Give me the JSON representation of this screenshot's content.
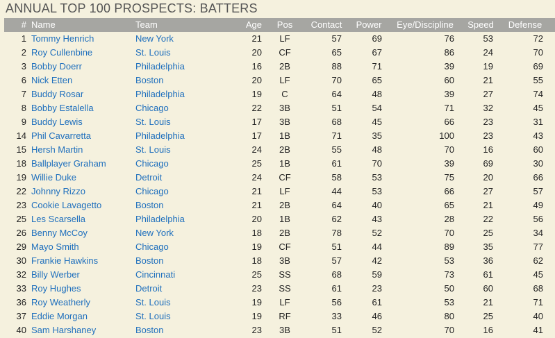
{
  "title": "ANNUAL TOP 100 PROSPECTS: BATTERS",
  "columns": {
    "rank": "#",
    "name": "Name",
    "team": "Team",
    "age": "Age",
    "pos": "Pos",
    "contact": "Contact",
    "power": "Power",
    "eye": "Eye/Discipline",
    "speed": "Speed",
    "defense": "Defense"
  },
  "rows": [
    {
      "rank": "1",
      "name": "Tommy Henrich",
      "team": "New York",
      "age": "21",
      "pos": "LF",
      "contact": "57",
      "power": "69",
      "eye": "76",
      "speed": "53",
      "defense": "72"
    },
    {
      "rank": "2",
      "name": "Roy Cullenbine",
      "team": "St. Louis",
      "age": "20",
      "pos": "CF",
      "contact": "65",
      "power": "67",
      "eye": "86",
      "speed": "24",
      "defense": "70"
    },
    {
      "rank": "3",
      "name": "Bobby Doerr",
      "team": "Philadelphia",
      "age": "16",
      "pos": "2B",
      "contact": "88",
      "power": "71",
      "eye": "39",
      "speed": "19",
      "defense": "69"
    },
    {
      "rank": "6",
      "name": "Nick Etten",
      "team": "Boston",
      "age": "20",
      "pos": "LF",
      "contact": "70",
      "power": "65",
      "eye": "60",
      "speed": "21",
      "defense": "55"
    },
    {
      "rank": "7",
      "name": "Buddy Rosar",
      "team": "Philadelphia",
      "age": "19",
      "pos": "C",
      "contact": "64",
      "power": "48",
      "eye": "39",
      "speed": "27",
      "defense": "74"
    },
    {
      "rank": "8",
      "name": "Bobby Estalella",
      "team": "Chicago",
      "age": "22",
      "pos": "3B",
      "contact": "51",
      "power": "54",
      "eye": "71",
      "speed": "32",
      "defense": "45"
    },
    {
      "rank": "9",
      "name": "Buddy Lewis",
      "team": "St. Louis",
      "age": "17",
      "pos": "3B",
      "contact": "68",
      "power": "45",
      "eye": "66",
      "speed": "23",
      "defense": "31"
    },
    {
      "rank": "14",
      "name": "Phil Cavarretta",
      "team": "Philadelphia",
      "age": "17",
      "pos": "1B",
      "contact": "71",
      "power": "35",
      "eye": "100",
      "speed": "23",
      "defense": "43"
    },
    {
      "rank": "15",
      "name": "Hersh Martin",
      "team": "St. Louis",
      "age": "24",
      "pos": "2B",
      "contact": "55",
      "power": "48",
      "eye": "70",
      "speed": "16",
      "defense": "60"
    },
    {
      "rank": "18",
      "name": "Ballplayer Graham",
      "team": "Chicago",
      "age": "25",
      "pos": "1B",
      "contact": "61",
      "power": "70",
      "eye": "39",
      "speed": "69",
      "defense": "30"
    },
    {
      "rank": "19",
      "name": "Willie Duke",
      "team": "Detroit",
      "age": "24",
      "pos": "CF",
      "contact": "58",
      "power": "53",
      "eye": "75",
      "speed": "20",
      "defense": "66"
    },
    {
      "rank": "22",
      "name": "Johnny Rizzo",
      "team": "Chicago",
      "age": "21",
      "pos": "LF",
      "contact": "44",
      "power": "53",
      "eye": "66",
      "speed": "27",
      "defense": "57"
    },
    {
      "rank": "23",
      "name": "Cookie Lavagetto",
      "team": "Boston",
      "age": "21",
      "pos": "2B",
      "contact": "64",
      "power": "40",
      "eye": "65",
      "speed": "21",
      "defense": "49"
    },
    {
      "rank": "25",
      "name": "Les Scarsella",
      "team": "Philadelphia",
      "age": "20",
      "pos": "1B",
      "contact": "62",
      "power": "43",
      "eye": "28",
      "speed": "22",
      "defense": "56"
    },
    {
      "rank": "26",
      "name": "Benny McCoy",
      "team": "New York",
      "age": "18",
      "pos": "2B",
      "contact": "78",
      "power": "52",
      "eye": "70",
      "speed": "25",
      "defense": "34"
    },
    {
      "rank": "29",
      "name": "Mayo Smith",
      "team": "Chicago",
      "age": "19",
      "pos": "CF",
      "contact": "51",
      "power": "44",
      "eye": "89",
      "speed": "35",
      "defense": "77"
    },
    {
      "rank": "30",
      "name": "Frankie Hawkins",
      "team": "Boston",
      "age": "18",
      "pos": "3B",
      "contact": "57",
      "power": "42",
      "eye": "53",
      "speed": "36",
      "defense": "62"
    },
    {
      "rank": "32",
      "name": "Billy Werber",
      "team": "Cincinnati",
      "age": "25",
      "pos": "SS",
      "contact": "68",
      "power": "59",
      "eye": "73",
      "speed": "61",
      "defense": "45"
    },
    {
      "rank": "33",
      "name": "Roy Hughes",
      "team": "Detroit",
      "age": "23",
      "pos": "SS",
      "contact": "61",
      "power": "23",
      "eye": "50",
      "speed": "60",
      "defense": "68"
    },
    {
      "rank": "36",
      "name": "Roy Weatherly",
      "team": "St. Louis",
      "age": "19",
      "pos": "LF",
      "contact": "56",
      "power": "61",
      "eye": "53",
      "speed": "21",
      "defense": "71"
    },
    {
      "rank": "37",
      "name": "Eddie Morgan",
      "team": "St. Louis",
      "age": "19",
      "pos": "RF",
      "contact": "33",
      "power": "46",
      "eye": "80",
      "speed": "25",
      "defense": "40"
    },
    {
      "rank": "40",
      "name": "Sam Harshaney",
      "team": "Boston",
      "age": "23",
      "pos": "3B",
      "contact": "51",
      "power": "52",
      "eye": "70",
      "speed": "16",
      "defense": "41"
    }
  ]
}
